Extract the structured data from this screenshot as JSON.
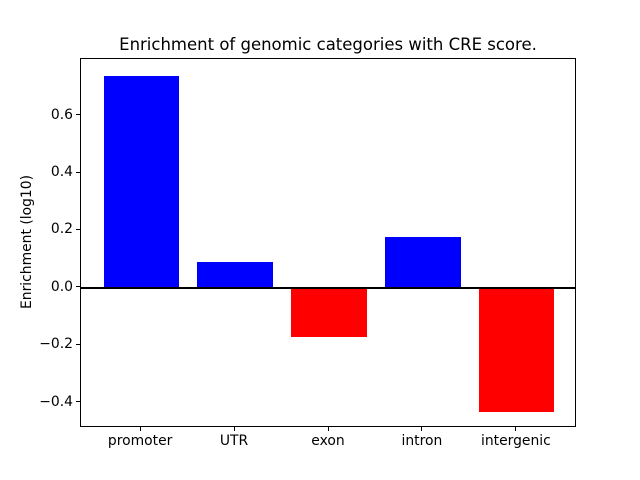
{
  "figure": {
    "background": "#ffffff",
    "text_color": "#000000",
    "axis_color": "#000000"
  },
  "chart_data": {
    "type": "bar",
    "title": "Enrichment of genomic categories with CRE score.",
    "ylabel": "Enrichment (log10)",
    "xlabel": "",
    "categories": [
      "promoter",
      "UTR",
      "exon",
      "intron",
      "intergenic"
    ],
    "values": [
      0.74,
      0.09,
      -0.17,
      0.18,
      -0.43
    ],
    "bar_colors": [
      "#0000ff",
      "#0000ff",
      "#ff0000",
      "#0000ff",
      "#ff0000"
    ],
    "positive_color": "#0000ff",
    "negative_color": "#ff0000",
    "baseline": 0,
    "baseline_line_color": "#000000",
    "bar_width": 0.8,
    "ylim": [
      -0.4885,
      0.7985
    ],
    "xlim": [
      -0.64,
      4.64
    ],
    "ytick_values": [
      0.6,
      0.4,
      0.2,
      0.0,
      -0.2,
      -0.4
    ],
    "ytick_labels": [
      "0.6",
      "0.4",
      "0.2",
      "0.0",
      "−0.2",
      "−0.4"
    ],
    "grid": false,
    "legend_position": "none"
  }
}
